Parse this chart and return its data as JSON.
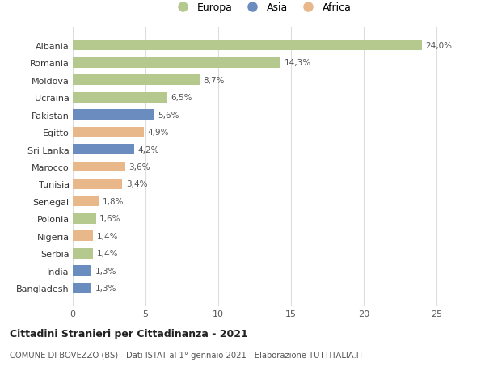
{
  "countries": [
    "Albania",
    "Romania",
    "Moldova",
    "Ucraina",
    "Pakistan",
    "Egitto",
    "Sri Lanka",
    "Marocco",
    "Tunisia",
    "Senegal",
    "Polonia",
    "Nigeria",
    "Serbia",
    "India",
    "Bangladesh"
  ],
  "values": [
    24.0,
    14.3,
    8.7,
    6.5,
    5.6,
    4.9,
    4.2,
    3.6,
    3.4,
    1.8,
    1.6,
    1.4,
    1.4,
    1.3,
    1.3
  ],
  "labels": [
    "24,0%",
    "14,3%",
    "8,7%",
    "6,5%",
    "5,6%",
    "4,9%",
    "4,2%",
    "3,6%",
    "3,4%",
    "1,8%",
    "1,6%",
    "1,4%",
    "1,4%",
    "1,3%",
    "1,3%"
  ],
  "continents": [
    "Europa",
    "Europa",
    "Europa",
    "Europa",
    "Asia",
    "Africa",
    "Asia",
    "Africa",
    "Africa",
    "Africa",
    "Europa",
    "Africa",
    "Europa",
    "Asia",
    "Asia"
  ],
  "colors": {
    "Europa": "#b5c98e",
    "Asia": "#6b8cbf",
    "Africa": "#e8b88a"
  },
  "title_bold": "Cittadini Stranieri per Cittadinanza - 2021",
  "title_sub": "COMUNE DI BOVEZZO (BS) - Dati ISTAT al 1° gennaio 2021 - Elaborazione TUTTITALIA.IT",
  "xlim": [
    0,
    26
  ],
  "xticks": [
    0,
    5,
    10,
    15,
    20,
    25
  ],
  "background_color": "#ffffff",
  "grid_color": "#dddddd",
  "bar_height": 0.6,
  "legend_entries": [
    "Europa",
    "Asia",
    "Africa"
  ]
}
